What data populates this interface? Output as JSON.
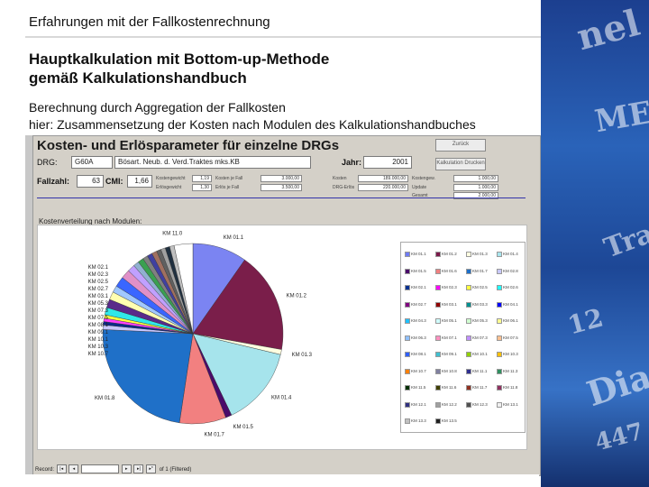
{
  "slide": {
    "header": "Erfahrungen mit der Fallkostenrechnung",
    "title_line1": "Hauptkalkulation mit Bottom-up-Methode",
    "title_line2": "gemäß Kalkulationshandbuch",
    "desc_line1": "Berechnung durch Aggregation der  Fallkosten",
    "desc_line2": "hier: Zusammensetzung der Kosten nach Modulen des Kalkulationshandbuches"
  },
  "decoration": {
    "words": [
      "nel",
      "ME",
      "Diag",
      "Tra",
      "447",
      "12"
    ]
  },
  "window": {
    "title": "Kosten- und Erlösparameter für einzelne DRGs",
    "btn_top": "Zurück",
    "btn_mid": "Kalkulation Drucken",
    "drg_label": "DRG:",
    "drg_code": "G60A",
    "drg_desc": "Bösart. Neub. d. Verd.Traktes mks.KB",
    "jahr_label": "Jahr:",
    "jahr_value": "2001",
    "fallzahl_label": "Fallzahl:",
    "fallzahl_value": "63",
    "cmi_label": "CMI:",
    "cmi_value": "1,66",
    "kosten_section_label": "Kostenverteilung nach Modulen:",
    "status": "Record:",
    "status_tail": "of 1 (Filtered)"
  },
  "metrics_left": [
    {
      "label": "Kostengewicht",
      "value": "1,19",
      "label2": "Kosten je Fall",
      "value2": "3.000,00"
    },
    {
      "label": "Erlösgewicht",
      "value": "1,30",
      "label2": "Erlös je Fall",
      "value2": "3.500,00"
    }
  ],
  "metrics_right": [
    {
      "label": "Kosten",
      "value": "189.000,00",
      "label2": "Kostengew.",
      "value2": "1.000,00"
    },
    {
      "label": "DRG-Erlös",
      "value": "220.000,00",
      "label2": "Update",
      "value2": "1.000,00"
    },
    {
      "label2": "Gesamt",
      "value2": "2.000,00"
    }
  ],
  "legend": {
    "items": [
      [
        "KM 01.1",
        "KM 01.2",
        "KM 01.3",
        "KM 01.4"
      ],
      [
        "KM 01.5",
        "KM 01.6",
        "KM 01.7",
        "KM 02.8"
      ],
      [
        "KM 02.1",
        "KM 02.3",
        "KM 02.5",
        "KM 02.6"
      ],
      [
        "KM 02.7",
        "KM 03.1",
        "KM 03.3",
        "KM 04.1"
      ],
      [
        "KM 04.3",
        "KM 05.1",
        "KM 05.3",
        "KM 06.1"
      ],
      [
        "KM 06.3",
        "KM 07.1",
        "KM 07.3",
        "KM 07.5"
      ],
      [
        "KM 08.1",
        "KM 09.1",
        "KM 10.1",
        "KM 10.3"
      ],
      [
        "KM 10.7",
        "KM 10.8",
        "KM 11.1",
        "KM 11.3"
      ],
      [
        "KM 11.5",
        "KM 11.6",
        "KM 11.7",
        "KM 11.8"
      ],
      [
        "KM 12.1",
        "KM 12.2",
        "KM 12.3",
        "KM 13.1"
      ],
      [
        "KM 13.3",
        "KM 13.5"
      ]
    ],
    "colors": [
      "#6f7cf5",
      "#7a1a4a",
      "#ffffe0",
      "#a9e6ee",
      "#4a0a6a",
      "#f08080",
      "#1e6fc8",
      "#c8c8ff",
      "#003090",
      "#ff00ff",
      "#ffff40",
      "#20ffff",
      "#800080",
      "#900000",
      "#009090",
      "#0000ff",
      "#20c0ff",
      "#d0ffff",
      "#d0ffd0",
      "#ffff90",
      "#90c0ff",
      "#ff90c0",
      "#c090ff",
      "#ffc090",
      "#3060ff",
      "#40c0d0",
      "#90d000",
      "#ffc000",
      "#ff8000",
      "#8080a0",
      "#303090",
      "#309060",
      "#003000",
      "#404000",
      "#903020",
      "#903060",
      "#303080",
      "#a0a0a0",
      "#505050",
      "#f0f0f0",
      "#c0c0c0",
      "#202020"
    ]
  },
  "chart_data": {
    "type": "pie",
    "title": "",
    "slices": [
      {
        "label": "KM 01.1",
        "value": 9.6,
        "color": "#7b84f2"
      },
      {
        "label": "KM 01.2",
        "value": 17.8,
        "color": "#7a1e4a"
      },
      {
        "label": "KM 01.3",
        "value": 0.9,
        "color": "#ffffe0"
      },
      {
        "label": "KM 01.4",
        "value": 14.0,
        "color": "#a6e4ec"
      },
      {
        "label": "KM 01.5",
        "value": 1.1,
        "color": "#4a0a6a"
      },
      {
        "label": "KM 01.7",
        "value": 8.2,
        "color": "#f28080"
      },
      {
        "label": "KM 01.8",
        "value": 23.0,
        "color": "#1f70c8"
      },
      {
        "label": "KM 02.1",
        "value": 0.8,
        "color": "#c6c6ff"
      },
      {
        "label": "KM 02.3",
        "value": 0.6,
        "color": "#0a2a8a"
      },
      {
        "label": "KM 02.5",
        "value": 0.6,
        "color": "#ff40ff"
      },
      {
        "label": "KM 02.7",
        "value": 0.6,
        "color": "#ffff40"
      },
      {
        "label": "KM 03.1",
        "value": 1.3,
        "color": "#30e8e8"
      },
      {
        "label": "KM 05.3",
        "value": 1.5,
        "color": "#5a2a8a"
      },
      {
        "label": "KM 07.3",
        "value": 1.4,
        "color": "#ffffb0"
      },
      {
        "label": "KM 07.5",
        "value": 1.2,
        "color": "#a0c8ff"
      },
      {
        "label": "KM 08.1",
        "value": 1.8,
        "color": "#3a66ff"
      },
      {
        "label": "KM 09.1",
        "value": 1.6,
        "color": "#e090c8"
      },
      {
        "label": "KM 10.1",
        "value": 1.3,
        "color": "#c0a0ff"
      },
      {
        "label": "KM 10.3",
        "value": 1.0,
        "color": "#90b0d0"
      },
      {
        "label": "KM 10.7",
        "value": 1.0,
        "color": "#3aa050"
      },
      {
        "label": "KM 11.1",
        "value": 0.9,
        "color": "#808080"
      },
      {
        "label": "KM 11.3",
        "value": 0.9,
        "color": "#4040a0"
      },
      {
        "label": "KM 11.5",
        "value": 0.9,
        "color": "#a07060"
      },
      {
        "label": "KM 11.7",
        "value": 0.8,
        "color": "#606060"
      },
      {
        "label": "KM 12.1",
        "value": 0.8,
        "color": "#a0a0a0"
      },
      {
        "label": "KM 12.3",
        "value": 0.8,
        "color": "#203040"
      },
      {
        "label": "KM 13.1",
        "value": 0.8,
        "color": "#c0c0c0"
      },
      {
        "label": "KM 11.0",
        "value": 3.3,
        "color": "#ffffff"
      }
    ],
    "left_labels": [
      "KM 01.8",
      "KM 02.1",
      "KM 02.3",
      "KM 02.5",
      "KM 02.7",
      "KM 03.1",
      "KM 05.3",
      "KM 07.3",
      "KM 07.5",
      "KM 08.1",
      "KM 09.1",
      "KM 10.1",
      "KM 10.3",
      "KM 10.7"
    ]
  }
}
